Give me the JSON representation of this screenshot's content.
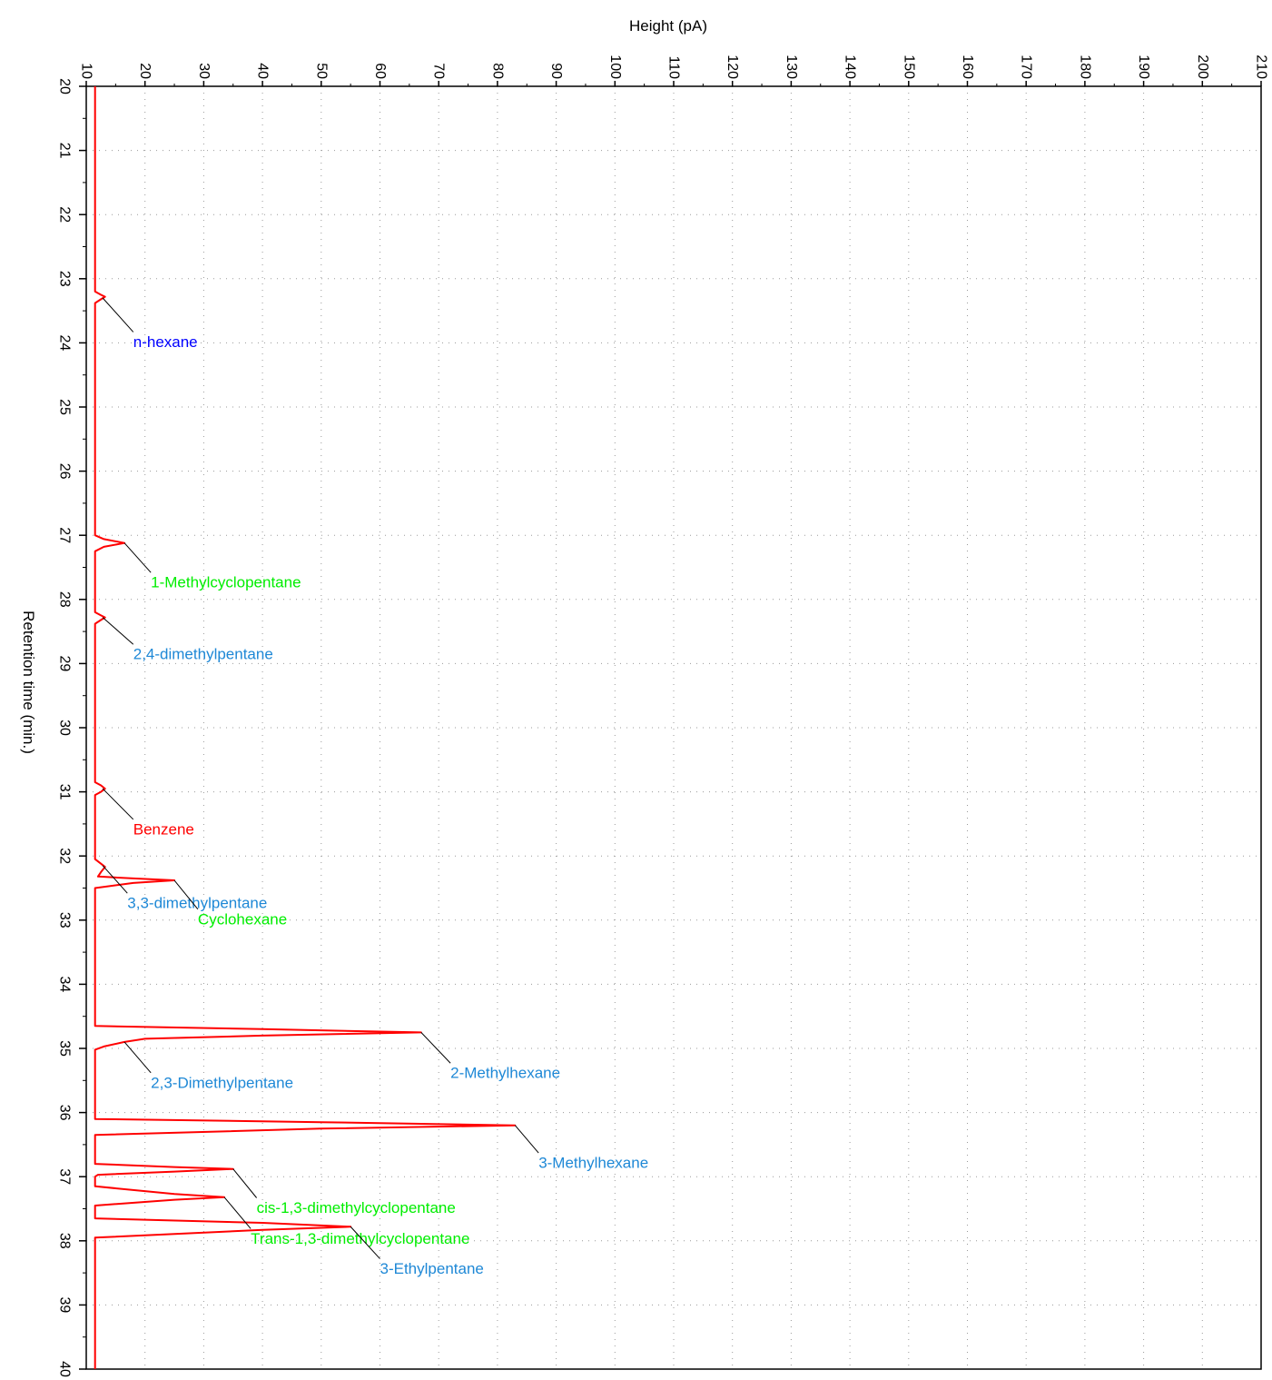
{
  "chart_data": {
    "type": "line",
    "orientation": "vertical-time",
    "title": "",
    "xlabel": "Height (pA)",
    "ylabel": "Retention time (min.)",
    "xlim": [
      10,
      210
    ],
    "ylim": [
      20,
      40
    ],
    "x_ticks": [
      "10",
      "20",
      "30",
      "40",
      "50",
      "60",
      "70",
      "80",
      "90",
      "100",
      "110",
      "120",
      "130",
      "140",
      "150",
      "160",
      "170",
      "180",
      "190",
      "200",
      "210"
    ],
    "y_ticks": [
      "20",
      "21",
      "22",
      "23",
      "24",
      "25",
      "26",
      "27",
      "28",
      "29",
      "30",
      "31",
      "32",
      "33",
      "34",
      "35",
      "36",
      "37",
      "38",
      "39",
      "40"
    ],
    "grid": true,
    "series": [
      {
        "color": "#ff0000",
        "points": [
          [
            11.5,
            20.0
          ],
          [
            11.5,
            23.2
          ],
          [
            12.5,
            23.25
          ],
          [
            13.2,
            23.28
          ],
          [
            12.5,
            23.32
          ],
          [
            11.5,
            23.38
          ],
          [
            11.5,
            27.0
          ],
          [
            13.0,
            27.06
          ],
          [
            16.5,
            27.12
          ],
          [
            13.0,
            27.18
          ],
          [
            11.5,
            27.25
          ],
          [
            11.5,
            28.2
          ],
          [
            12.5,
            28.25
          ],
          [
            13.2,
            28.28
          ],
          [
            12.5,
            28.32
          ],
          [
            11.5,
            28.38
          ],
          [
            11.5,
            30.85
          ],
          [
            12.5,
            30.9
          ],
          [
            13.2,
            30.95
          ],
          [
            12.5,
            31.0
          ],
          [
            11.5,
            31.05
          ],
          [
            11.5,
            32.05
          ],
          [
            12.5,
            32.12
          ],
          [
            13.2,
            32.17
          ],
          [
            12.5,
            32.25
          ],
          [
            12.0,
            32.32
          ],
          [
            18.0,
            32.35
          ],
          [
            25.0,
            32.38
          ],
          [
            18.0,
            32.42
          ],
          [
            11.5,
            32.5
          ],
          [
            11.5,
            34.65
          ],
          [
            40.0,
            34.7
          ],
          [
            67.0,
            34.75
          ],
          [
            40.0,
            34.8
          ],
          [
            20.0,
            34.85
          ],
          [
            16.5,
            34.9
          ],
          [
            13.0,
            34.97
          ],
          [
            11.5,
            35.02
          ],
          [
            11.5,
            36.1
          ],
          [
            50.0,
            36.15
          ],
          [
            83.0,
            36.2
          ],
          [
            50.0,
            36.25
          ],
          [
            11.5,
            36.35
          ],
          [
            11.5,
            36.8
          ],
          [
            25.0,
            36.85
          ],
          [
            35.0,
            36.88
          ],
          [
            25.0,
            36.92
          ],
          [
            12.0,
            36.97
          ],
          [
            11.5,
            37.0
          ],
          [
            11.5,
            37.15
          ],
          [
            25.0,
            37.27
          ],
          [
            33.5,
            37.32
          ],
          [
            25.0,
            37.36
          ],
          [
            11.5,
            37.45
          ],
          [
            11.5,
            37.65
          ],
          [
            40.0,
            37.72
          ],
          [
            55.0,
            37.78
          ],
          [
            40.0,
            37.83
          ],
          [
            11.5,
            37.95
          ],
          [
            11.5,
            40.0
          ]
        ]
      }
    ],
    "annotations": [
      {
        "text": "n-hexane",
        "color": "#0000ff",
        "peak": [
          12.8,
          23.3
        ],
        "label": [
          18,
          24.0
        ]
      },
      {
        "text": "1-Methylcyclopentane",
        "color": "#00ee00",
        "peak": [
          16.5,
          27.12
        ],
        "label": [
          21,
          27.75
        ]
      },
      {
        "text": "2,4-dimethylpentane",
        "color": "#1e88d6",
        "peak": [
          12.8,
          28.28
        ],
        "label": [
          18,
          28.87
        ]
      },
      {
        "text": "Benzene",
        "color": "#ff0000",
        "peak": [
          12.8,
          30.95
        ],
        "label": [
          18,
          31.6
        ]
      },
      {
        "text": "3,3-dimethylpentane",
        "color": "#1e88d6",
        "peak": [
          12.8,
          32.15
        ],
        "label": [
          17,
          32.75
        ]
      },
      {
        "text": "Cyclohexane",
        "color": "#00ee00",
        "peak": [
          25.0,
          32.38
        ],
        "label": [
          29,
          33.0
        ]
      },
      {
        "text": "2-Methylhexane",
        "color": "#1e88d6",
        "peak": [
          67.0,
          34.75
        ],
        "label": [
          72,
          35.4
        ]
      },
      {
        "text": "2,3-Dimethylpentane",
        "color": "#1e88d6",
        "peak": [
          16.5,
          34.9
        ],
        "label": [
          21,
          35.55
        ]
      },
      {
        "text": "3-Methylhexane",
        "color": "#1e88d6",
        "peak": [
          83.0,
          36.2
        ],
        "label": [
          87,
          36.8
        ]
      },
      {
        "text": "cis-1,3-dimethylcyclopentane",
        "color": "#00ee00",
        "peak": [
          35.0,
          36.88
        ],
        "label": [
          39,
          37.5
        ]
      },
      {
        "text": "Trans-1,3-dimethylcyclopentane",
        "color": "#00ee00",
        "peak": [
          33.5,
          37.32
        ],
        "label": [
          38,
          37.98
        ]
      },
      {
        "text": "3-Ethylpentane",
        "color": "#1e88d6",
        "peak": [
          55.0,
          37.78
        ],
        "label": [
          60,
          38.45
        ]
      }
    ]
  }
}
